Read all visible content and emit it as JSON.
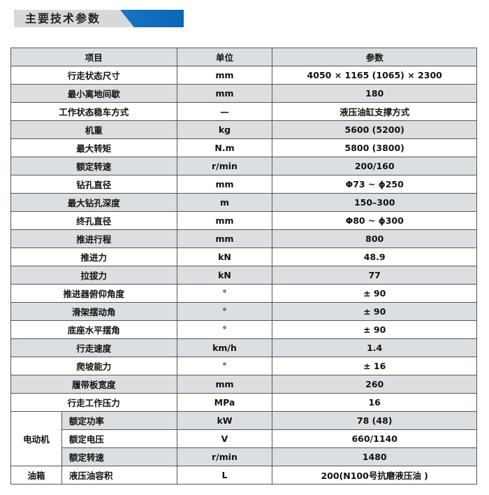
{
  "section_title": "主要技术参数",
  "colors": {
    "banner_blue": "#0a66b8",
    "banner_gray": "#d6d8da",
    "row_gray": "#dcdfe2"
  },
  "table": {
    "headers": [
      "项目",
      "单位",
      "参数"
    ],
    "rows": [
      {
        "item": "行走状态尺寸",
        "unit": "mm",
        "value": "4050 × 1165 (1065)  × 2300"
      },
      {
        "item": "最小离地间歇",
        "unit": "mm",
        "value": "180"
      },
      {
        "item": "工作状态稳车方式",
        "unit": "—",
        "value": "液压油缸支撑方式"
      },
      {
        "item": "机重",
        "unit": "kg",
        "value": "5600 (5200)"
      },
      {
        "item": "最大转矩",
        "unit": "N.m",
        "value": "5800 (3800)"
      },
      {
        "item": "额定转速",
        "unit": "r/min",
        "value": "200/160"
      },
      {
        "item": "钻孔直径",
        "unit": "mm",
        "value": "Φ73 ~ ϕ250"
      },
      {
        "item": "最大钻孔深度",
        "unit": "m",
        "value": "150–300"
      },
      {
        "item": "终孔直径",
        "unit": "mm",
        "value": "Φ80 ~ ϕ300"
      },
      {
        "item": "推进行程",
        "unit": "mm",
        "value": "800"
      },
      {
        "item": "推进力",
        "unit": "kN",
        "value": "48.9"
      },
      {
        "item": "拉拔力",
        "unit": "kN",
        "value": "77"
      },
      {
        "item": "推进器俯仰角度",
        "unit": "°",
        "value": "± 90"
      },
      {
        "item": "滑架摆动角",
        "unit": "°",
        "value": "± 90"
      },
      {
        "item": "底座水平摆角",
        "unit": "°",
        "value": "± 90"
      },
      {
        "item": "行走速度",
        "unit": "km/h",
        "value": "1.4"
      },
      {
        "item": "爬坡能力",
        "unit": "°",
        "value": "± 16"
      },
      {
        "item": "履带板宽度",
        "unit": "mm",
        "value": "260"
      },
      {
        "item": "行走工作压力",
        "unit": "MPa",
        "value": "16"
      }
    ],
    "motor": {
      "group": "电动机",
      "rows": [
        {
          "item": "额定功率",
          "unit": "kW",
          "value": "78 (48)"
        },
        {
          "item": "额定电压",
          "unit": "V",
          "value": "660/1140"
        },
        {
          "item": "额定转速",
          "unit": "r/min",
          "value": "1480"
        }
      ]
    },
    "tank": {
      "group": "油箱",
      "item": "液压油容积",
      "unit": "L",
      "value": "200(N100号抗磨液压油 )"
    }
  }
}
